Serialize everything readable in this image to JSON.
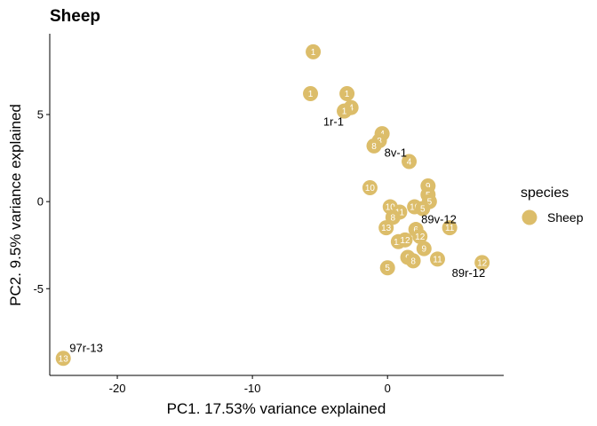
{
  "chart_data": {
    "type": "scatter",
    "title": "Sheep",
    "xlabel": "PC1. 17.53% variance explained",
    "ylabel": "PC2. 9.5% variance explained",
    "xlim": [
      -25,
      8.6
    ],
    "ylim": [
      -9.98,
      9.64
    ],
    "x_ticks": [
      -20,
      -10,
      0
    ],
    "x_tick_labels": [
      "-20",
      "-10",
      "0"
    ],
    "y_ticks": [
      -5,
      0,
      5
    ],
    "y_tick_labels": [
      "-5",
      "0",
      "5"
    ],
    "grid": false,
    "legend": {
      "title": "species",
      "position": "right",
      "entries": [
        {
          "label": "Sheep",
          "color": "#dcbd6a"
        }
      ]
    },
    "series": [
      {
        "name": "Sheep",
        "color": "#dcbd6a",
        "points": [
          {
            "x": -5.5,
            "y": 8.6,
            "label": "1"
          },
          {
            "x": -5.7,
            "y": 6.2,
            "label": "1"
          },
          {
            "x": -3.0,
            "y": 6.2,
            "label": "1"
          },
          {
            "x": -2.7,
            "y": 5.4,
            "label": "4"
          },
          {
            "x": -3.2,
            "y": 5.2,
            "label": "1"
          },
          {
            "x": -0.4,
            "y": 3.9,
            "label": "4"
          },
          {
            "x": -0.6,
            "y": 3.5,
            "label": "8"
          },
          {
            "x": -1.0,
            "y": 3.2,
            "label": "8"
          },
          {
            "x": 1.6,
            "y": 2.3,
            "label": "4"
          },
          {
            "x": -1.3,
            "y": 0.8,
            "label": "10"
          },
          {
            "x": 3.0,
            "y": 0.9,
            "label": "9"
          },
          {
            "x": 3.0,
            "y": 0.4,
            "label": "5"
          },
          {
            "x": 2.0,
            "y": -0.3,
            "label": "10"
          },
          {
            "x": 3.1,
            "y": 0.0,
            "label": "5"
          },
          {
            "x": 2.6,
            "y": -0.4,
            "label": "5"
          },
          {
            "x": 0.2,
            "y": -0.3,
            "label": "10"
          },
          {
            "x": 0.9,
            "y": -0.6,
            "label": "11"
          },
          {
            "x": 0.4,
            "y": -0.9,
            "label": "8"
          },
          {
            "x": 2.1,
            "y": -1.6,
            "label": "6"
          },
          {
            "x": -0.1,
            "y": -1.5,
            "label": "13"
          },
          {
            "x": 2.4,
            "y": -2.0,
            "label": "12"
          },
          {
            "x": 4.6,
            "y": -1.5,
            "label": "11"
          },
          {
            "x": 0.8,
            "y": -2.3,
            "label": "11"
          },
          {
            "x": 1.3,
            "y": -2.2,
            "label": "12"
          },
          {
            "x": 2.7,
            "y": -2.7,
            "label": "9"
          },
          {
            "x": 1.5,
            "y": -3.2,
            "label": "9"
          },
          {
            "x": 1.9,
            "y": -3.4,
            "label": "8"
          },
          {
            "x": 3.7,
            "y": -3.3,
            "label": "11"
          },
          {
            "x": 0.0,
            "y": -3.8,
            "label": "5"
          },
          {
            "x": 7.0,
            "y": -3.5,
            "label": "12"
          },
          {
            "x": -24.0,
            "y": -9.0,
            "label": "13"
          }
        ]
      }
    ],
    "annotations": [
      {
        "text": "1r-1",
        "x": -4.0,
        "y": 4.6
      },
      {
        "text": "8v-1",
        "x": 0.6,
        "y": 2.8
      },
      {
        "text": "89v-12",
        "x": 3.8,
        "y": -1.0
      },
      {
        "text": "89r-12",
        "x": 6.0,
        "y": -4.1
      },
      {
        "text": "97r-13",
        "x": -22.3,
        "y": -8.4
      }
    ]
  }
}
